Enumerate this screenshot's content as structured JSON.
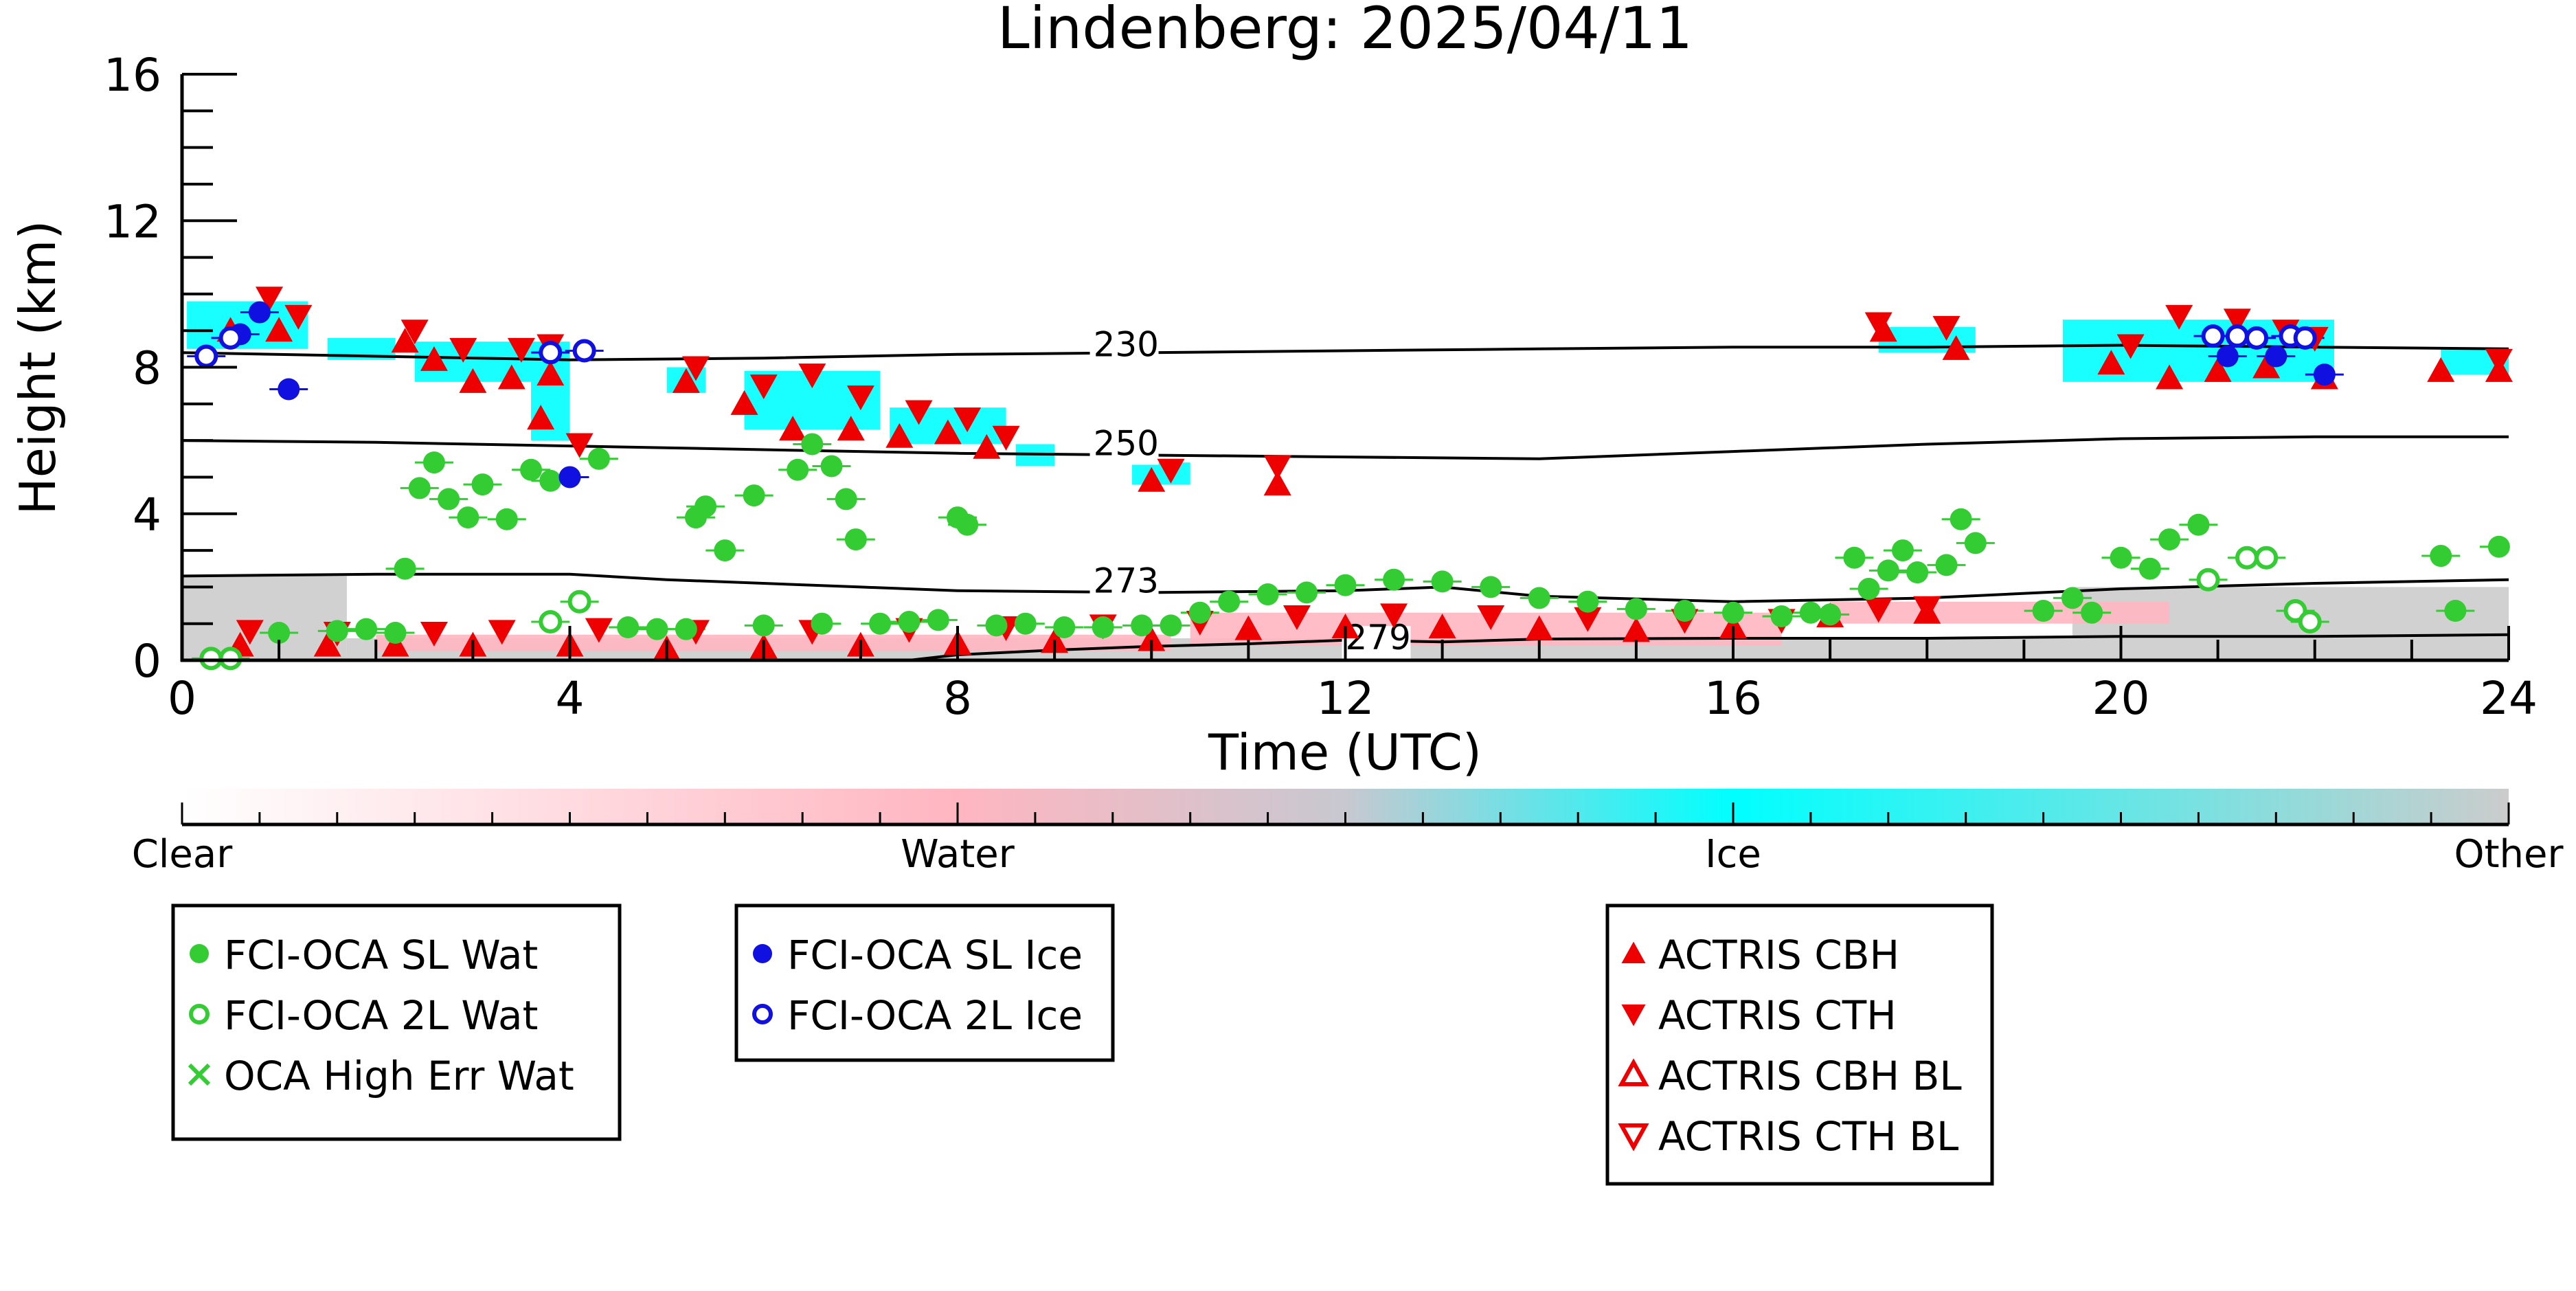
{
  "colors": {
    "water_marker": "#33cc33",
    "ice_marker": "#1010e0",
    "actris": "#ee0000",
    "ice_class": "#00ffff",
    "water_class": "#ffb6c1",
    "other_class": "#cccccc",
    "contour": "#000000"
  },
  "chart_data": {
    "type": "scatter",
    "title": "Lindenberg: 2025/04/11",
    "xlabel": "Time (UTC)",
    "ylabel": "Height (km)",
    "xlim": [
      0,
      24
    ],
    "ylim": [
      0,
      16
    ],
    "x_ticks": [
      "0",
      "4",
      "8",
      "12",
      "16",
      "20",
      "24"
    ],
    "y_ticks": [
      "0",
      "4",
      "8",
      "12",
      "16"
    ],
    "grid": false,
    "temperature_contours": [
      {
        "label": "230",
        "label_at": [
          9.4,
          8.3
        ],
        "points": [
          [
            0,
            8.4
          ],
          [
            2,
            8.3
          ],
          [
            4,
            8.2
          ],
          [
            6,
            8.25
          ],
          [
            8,
            8.35
          ],
          [
            10,
            8.4
          ],
          [
            12,
            8.45
          ],
          [
            14,
            8.5
          ],
          [
            16,
            8.55
          ],
          [
            18,
            8.55
          ],
          [
            20,
            8.6
          ],
          [
            22,
            8.55
          ],
          [
            24,
            8.5
          ]
        ]
      },
      {
        "label": "250",
        "label_at": [
          9.4,
          5.6
        ],
        "points": [
          [
            0,
            6.0
          ],
          [
            2,
            5.95
          ],
          [
            4,
            5.85
          ],
          [
            6,
            5.75
          ],
          [
            8,
            5.65
          ],
          [
            10,
            5.6
          ],
          [
            12,
            5.55
          ],
          [
            14,
            5.5
          ],
          [
            16,
            5.7
          ],
          [
            18,
            5.9
          ],
          [
            20,
            6.05
          ],
          [
            22,
            6.1
          ],
          [
            24,
            6.1
          ]
        ]
      },
      {
        "label": "273",
        "label_at": [
          9.4,
          1.85
        ],
        "points": [
          [
            0,
            2.3
          ],
          [
            2,
            2.35
          ],
          [
            4,
            2.35
          ],
          [
            5,
            2.2
          ],
          [
            7,
            2.0
          ],
          [
            8,
            1.9
          ],
          [
            10,
            1.85
          ],
          [
            12,
            1.9
          ],
          [
            13,
            2.0
          ],
          [
            14,
            1.75
          ],
          [
            16,
            1.6
          ],
          [
            18,
            1.7
          ],
          [
            20,
            1.95
          ],
          [
            22,
            2.1
          ],
          [
            24,
            2.2
          ]
        ]
      },
      {
        "label": "279",
        "label_at": [
          12.0,
          0.3
        ],
        "points": [
          [
            7.5,
            0.0
          ],
          [
            8,
            0.15
          ],
          [
            9,
            0.28
          ],
          [
            10,
            0.38
          ],
          [
            11,
            0.45
          ],
          [
            12,
            0.55
          ],
          [
            13,
            0.5
          ],
          [
            14,
            0.58
          ],
          [
            16,
            0.6
          ],
          [
            18,
            0.6
          ],
          [
            20,
            0.65
          ],
          [
            22,
            0.65
          ],
          [
            24,
            0.7
          ]
        ]
      }
    ],
    "cloud_classification": {
      "legend": {
        "labels": [
          "Clear",
          "Water",
          "Ice",
          "Other"
        ],
        "levels": [
          0,
          1,
          2,
          3
        ]
      },
      "ice_regions": [
        {
          "x": [
            0.05,
            1.3
          ],
          "y": [
            8.5,
            9.8
          ]
        },
        {
          "x": [
            1.5,
            2.2
          ],
          "y": [
            8.2,
            8.8
          ]
        },
        {
          "x": [
            2.4,
            4.0
          ],
          "y": [
            7.6,
            8.7
          ]
        },
        {
          "x": [
            3.6,
            4.0
          ],
          "y": [
            6.0,
            7.6
          ]
        },
        {
          "x": [
            5.0,
            5.4
          ],
          "y": [
            7.3,
            8.0
          ]
        },
        {
          "x": [
            5.8,
            7.2
          ],
          "y": [
            6.3,
            7.9
          ]
        },
        {
          "x": [
            7.3,
            8.5
          ],
          "y": [
            5.9,
            6.9
          ]
        },
        {
          "x": [
            8.6,
            9.0
          ],
          "y": [
            5.3,
            5.9
          ]
        },
        {
          "x": [
            9.8,
            10.4
          ],
          "y": [
            4.8,
            5.4
          ]
        },
        {
          "x": [
            17.5,
            18.5
          ],
          "y": [
            8.4,
            9.1
          ]
        },
        {
          "x": [
            19.4,
            22.2
          ],
          "y": [
            7.6,
            9.3
          ]
        },
        {
          "x": [
            23.3,
            24.0
          ],
          "y": [
            7.8,
            8.5
          ]
        }
      ],
      "water_regions": [
        {
          "x": [
            2.0,
            10.2
          ],
          "y": [
            0.25,
            0.7
          ]
        },
        {
          "x": [
            10.4,
            16.5
          ],
          "y": [
            0.4,
            1.3
          ]
        },
        {
          "x": [
            17.0,
            20.5
          ],
          "y": [
            1.0,
            1.6
          ]
        }
      ],
      "other_regions": [
        {
          "x": [
            0.0,
            1.7
          ],
          "y": [
            0.0,
            2.3
          ]
        },
        {
          "x": [
            1.7,
            24.0
          ],
          "y": [
            0.0,
            0.6
          ]
        },
        {
          "x": [
            19.5,
            24.0
          ],
          "y": [
            0.6,
            2.0
          ]
        }
      ]
    },
    "series": [
      {
        "name": "FCI-OCA SL Wat",
        "marker": "filled-circle",
        "color": "#33cc33",
        "points": [
          [
            1.0,
            0.75
          ],
          [
            1.6,
            0.8
          ],
          [
            1.9,
            0.85
          ],
          [
            2.2,
            0.75
          ],
          [
            2.3,
            2.5
          ],
          [
            2.45,
            4.7
          ],
          [
            2.6,
            5.4
          ],
          [
            2.75,
            4.4
          ],
          [
            2.95,
            3.9
          ],
          [
            3.1,
            4.8
          ],
          [
            3.35,
            3.85
          ],
          [
            3.6,
            5.2
          ],
          [
            3.8,
            4.9
          ],
          [
            4.3,
            5.5
          ],
          [
            4.6,
            0.9
          ],
          [
            4.9,
            0.85
          ],
          [
            5.2,
            0.85
          ],
          [
            5.3,
            3.9
          ],
          [
            5.4,
            4.2
          ],
          [
            5.6,
            3.0
          ],
          [
            5.9,
            4.5
          ],
          [
            6.0,
            0.95
          ],
          [
            6.35,
            5.2
          ],
          [
            6.5,
            5.9
          ],
          [
            6.6,
            1.0
          ],
          [
            6.7,
            5.3
          ],
          [
            6.85,
            4.4
          ],
          [
            6.95,
            3.3
          ],
          [
            7.2,
            1.0
          ],
          [
            7.5,
            1.05
          ],
          [
            7.8,
            1.1
          ],
          [
            8.0,
            3.9
          ],
          [
            8.1,
            3.7
          ],
          [
            8.4,
            0.95
          ],
          [
            8.7,
            1.0
          ],
          [
            9.1,
            0.9
          ],
          [
            9.5,
            0.9
          ],
          [
            9.9,
            0.95
          ],
          [
            10.2,
            0.95
          ],
          [
            10.5,
            1.3
          ],
          [
            10.8,
            1.6
          ],
          [
            11.2,
            1.8
          ],
          [
            11.6,
            1.85
          ],
          [
            12.0,
            2.05
          ],
          [
            12.5,
            2.2
          ],
          [
            13.0,
            2.15
          ],
          [
            13.5,
            2.0
          ],
          [
            14.0,
            1.7
          ],
          [
            14.5,
            1.6
          ],
          [
            15.0,
            1.4
          ],
          [
            15.5,
            1.35
          ],
          [
            16.0,
            1.3
          ],
          [
            16.5,
            1.2
          ],
          [
            16.8,
            1.3
          ],
          [
            17.0,
            1.25
          ],
          [
            17.25,
            2.8
          ],
          [
            17.4,
            1.95
          ],
          [
            17.6,
            2.45
          ],
          [
            17.75,
            3.0
          ],
          [
            17.9,
            2.4
          ],
          [
            18.2,
            2.6
          ],
          [
            18.35,
            3.85
          ],
          [
            18.5,
            3.2
          ],
          [
            19.2,
            1.35
          ],
          [
            19.5,
            1.7
          ],
          [
            19.7,
            1.3
          ],
          [
            20.0,
            2.8
          ],
          [
            20.3,
            2.5
          ],
          [
            20.5,
            3.3
          ],
          [
            20.8,
            3.7
          ],
          [
            23.3,
            2.85
          ],
          [
            23.45,
            1.35
          ],
          [
            23.9,
            3.1
          ]
        ]
      },
      {
        "name": "FCI-OCA 2L Wat",
        "marker": "open-circle",
        "color": "#33cc33",
        "points": [
          [
            0.3,
            0.05
          ],
          [
            0.5,
            0.05
          ],
          [
            3.8,
            1.05
          ],
          [
            4.1,
            1.6
          ],
          [
            20.9,
            2.2
          ],
          [
            21.3,
            2.8
          ],
          [
            21.5,
            2.8
          ],
          [
            21.8,
            1.35
          ],
          [
            21.95,
            1.05
          ]
        ]
      },
      {
        "name": "OCA High Err Wat",
        "marker": "x",
        "color": "#33cc33",
        "points": []
      },
      {
        "name": "FCI-OCA SL Ice",
        "marker": "filled-circle",
        "color": "#1010e0",
        "points": [
          [
            0.6,
            8.9
          ],
          [
            0.8,
            9.5
          ],
          [
            1.1,
            7.4
          ],
          [
            4.0,
            5.0
          ],
          [
            21.1,
            8.3
          ],
          [
            21.6,
            8.3
          ],
          [
            22.1,
            7.8
          ]
        ]
      },
      {
        "name": "FCI-OCA 2L Ice",
        "marker": "open-circle",
        "color": "#1010e0",
        "points": [
          [
            0.25,
            8.3
          ],
          [
            0.5,
            8.8
          ],
          [
            3.8,
            8.4
          ],
          [
            4.15,
            8.45
          ],
          [
            20.95,
            8.85
          ],
          [
            21.2,
            8.85
          ],
          [
            21.4,
            8.8
          ],
          [
            21.75,
            8.85
          ],
          [
            21.9,
            8.8
          ]
        ]
      },
      {
        "name": "ACTRIS CBH",
        "marker": "triangle-up",
        "color": "#ee0000",
        "points": [
          [
            0.5,
            9.0
          ],
          [
            1.0,
            9.0
          ],
          [
            2.3,
            8.7
          ],
          [
            2.6,
            8.2
          ],
          [
            3.0,
            7.6
          ],
          [
            3.4,
            7.7
          ],
          [
            3.8,
            7.8
          ],
          [
            3.7,
            6.6
          ],
          [
            5.2,
            7.6
          ],
          [
            5.8,
            7.0
          ],
          [
            6.3,
            6.3
          ],
          [
            6.9,
            6.3
          ],
          [
            7.4,
            6.1
          ],
          [
            7.9,
            6.2
          ],
          [
            8.3,
            5.8
          ],
          [
            10.0,
            4.9
          ],
          [
            11.3,
            4.8
          ],
          [
            17.55,
            9.0
          ],
          [
            18.3,
            8.5
          ],
          [
            19.9,
            8.1
          ],
          [
            20.5,
            7.7
          ],
          [
            21.0,
            7.9
          ],
          [
            21.5,
            8.0
          ],
          [
            22.1,
            7.7
          ],
          [
            23.3,
            7.9
          ],
          [
            23.9,
            7.9
          ],
          [
            0.6,
            0.4
          ],
          [
            1.5,
            0.4
          ],
          [
            2.2,
            0.4
          ],
          [
            3.0,
            0.4
          ],
          [
            4.0,
            0.4
          ],
          [
            5.0,
            0.3
          ],
          [
            6.0,
            0.35
          ],
          [
            7.0,
            0.4
          ],
          [
            8.0,
            0.45
          ],
          [
            9.0,
            0.5
          ],
          [
            10.0,
            0.55
          ],
          [
            11.0,
            0.85
          ],
          [
            12.0,
            0.9
          ],
          [
            13.0,
            0.9
          ],
          [
            14.0,
            0.85
          ],
          [
            15.0,
            0.8
          ],
          [
            16.0,
            0.9
          ],
          [
            17.0,
            1.2
          ],
          [
            18.0,
            1.3
          ]
        ]
      },
      {
        "name": "ACTRIS CTH",
        "marker": "triangle-down",
        "color": "#ee0000",
        "points": [
          [
            0.9,
            9.9
          ],
          [
            1.2,
            9.4
          ],
          [
            2.4,
            9.0
          ],
          [
            2.9,
            8.5
          ],
          [
            3.5,
            8.5
          ],
          [
            3.8,
            8.6
          ],
          [
            4.1,
            5.9
          ],
          [
            5.3,
            8.0
          ],
          [
            6.0,
            7.5
          ],
          [
            6.5,
            7.8
          ],
          [
            7.0,
            7.2
          ],
          [
            7.6,
            6.8
          ],
          [
            8.1,
            6.6
          ],
          [
            8.5,
            6.1
          ],
          [
            10.2,
            5.2
          ],
          [
            11.3,
            5.3
          ],
          [
            17.5,
            9.2
          ],
          [
            18.2,
            9.1
          ],
          [
            20.1,
            8.6
          ],
          [
            20.6,
            9.4
          ],
          [
            21.2,
            9.3
          ],
          [
            21.7,
            9.0
          ],
          [
            22.0,
            8.8
          ],
          [
            23.9,
            8.2
          ],
          [
            0.7,
            0.8
          ],
          [
            1.6,
            0.75
          ],
          [
            2.6,
            0.75
          ],
          [
            3.3,
            0.8
          ],
          [
            4.3,
            0.85
          ],
          [
            5.3,
            0.8
          ],
          [
            6.5,
            0.8
          ],
          [
            7.5,
            0.85
          ],
          [
            8.5,
            0.9
          ],
          [
            9.5,
            0.95
          ],
          [
            10.5,
            1.05
          ],
          [
            11.5,
            1.2
          ],
          [
            12.5,
            1.25
          ],
          [
            13.5,
            1.2
          ],
          [
            14.5,
            1.15
          ],
          [
            15.5,
            1.1
          ],
          [
            16.5,
            1.1
          ],
          [
            17.5,
            1.4
          ],
          [
            18.0,
            1.45
          ]
        ]
      },
      {
        "name": "ACTRIS CBH BL",
        "marker": "open-triangle-up",
        "color": "#ee0000",
        "points": []
      },
      {
        "name": "ACTRIS CTH BL",
        "marker": "open-triangle-down",
        "color": "#ee0000",
        "points": []
      }
    ],
    "legend_groups": [
      [
        "FCI-OCA SL Wat",
        "FCI-OCA 2L Wat",
        "OCA High Err Wat"
      ],
      [
        "FCI-OCA SL Ice",
        "FCI-OCA 2L Ice"
      ],
      [
        "ACTRIS CBH",
        "ACTRIS CTH",
        "ACTRIS CBH BL",
        "ACTRIS CTH BL"
      ]
    ]
  }
}
